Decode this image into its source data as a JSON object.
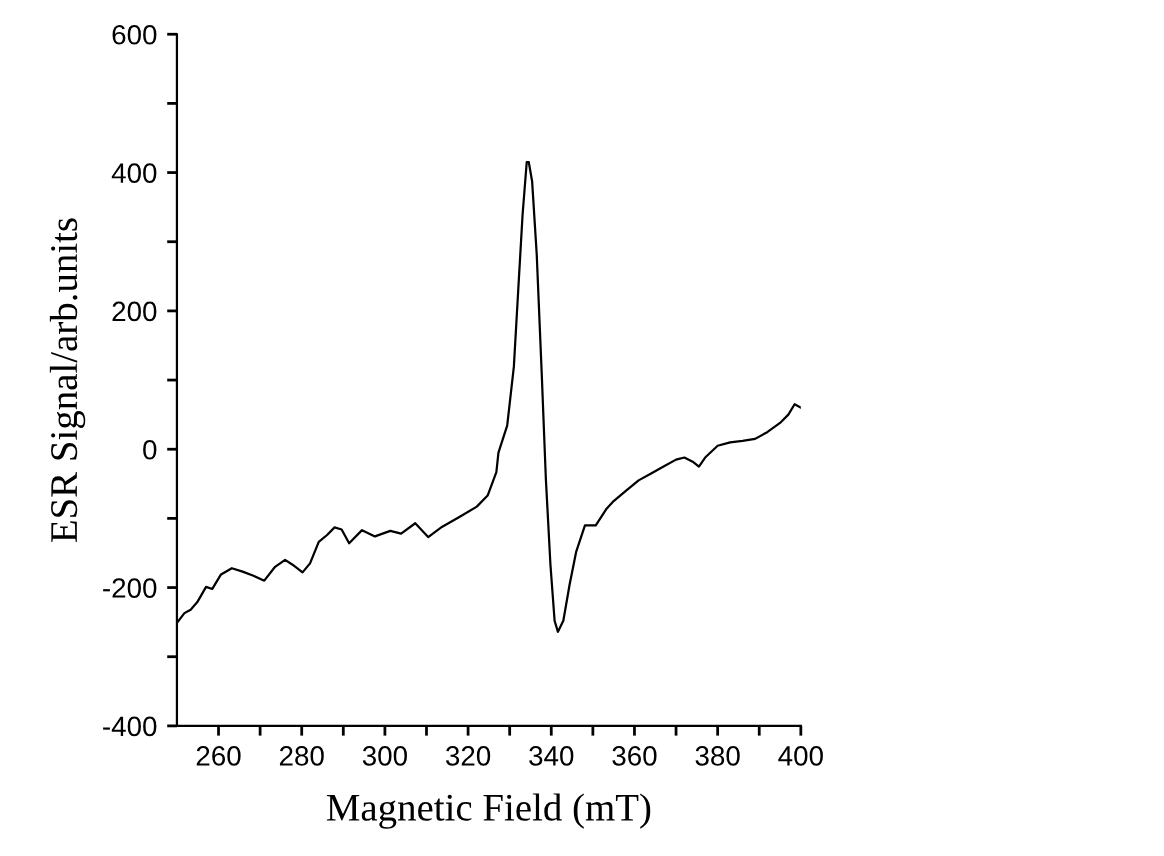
{
  "chart_data": {
    "type": "line",
    "xlabel": "Magnetic Field (mT)",
    "ylabel": "ESR Signal/arb.units",
    "xlim": [
      250,
      400
    ],
    "ylim": [
      -400,
      600
    ],
    "xticks": [
      260,
      {
        "value": 270,
        "label": null
      },
      280,
      {
        "value": 290,
        "label": null
      },
      300,
      {
        "value": 310,
        "label": null
      },
      320,
      {
        "value": 330,
        "label": null
      },
      340,
      {
        "value": 350,
        "label": null
      },
      360,
      {
        "value": 370,
        "label": null
      },
      380,
      {
        "value": 390,
        "label": null
      },
      400
    ],
    "yticks": [
      -400,
      {
        "value": -300,
        "label": null
      },
      -200,
      {
        "value": -100,
        "label": null
      },
      0,
      {
        "value": 100,
        "label": null
      },
      200,
      {
        "value": 300,
        "label": null
      },
      400,
      {
        "value": 500,
        "label": null
      },
      600
    ],
    "grid": false,
    "legend": false,
    "marker": "none",
    "line_style": "solid",
    "series": [
      {
        "color": "#000000",
        "x": [
          250,
          251.8,
          253.3,
          254.9,
          257,
          258.5,
          260.6,
          263.2,
          265.8,
          268.4,
          271,
          273.6,
          276,
          277.8,
          280.2,
          282,
          284.1,
          286.1,
          287.9,
          289.6,
          291.4,
          294.5,
          297.6,
          301.3,
          303.9,
          307.3,
          310.4,
          313.8,
          317.9,
          322.1,
          324.7,
          326.8,
          327.3,
          329.4,
          331,
          332,
          333.1,
          334.1,
          334.6,
          335.4,
          336.5,
          337.7,
          338.7,
          339.8,
          340.8,
          341.6,
          342.9,
          344.4,
          346,
          348.1,
          350.7,
          353.3,
          355,
          358,
          361,
          364,
          367,
          370,
          372,
          374,
          375.5,
          377,
          380,
          383,
          386,
          389,
          392,
          395,
          397,
          398.5,
          400
        ],
        "values": [
          -251,
          -237,
          -232,
          -221,
          -199,
          -202,
          -181,
          -172,
          -177,
          -183,
          -190,
          -170,
          -160,
          -167,
          -178,
          -165,
          -134,
          -124,
          -113,
          -116,
          -136,
          -117,
          -126,
          -118,
          -122,
          -107,
          -127,
          -112,
          -98,
          -83,
          -67,
          -33,
          -5,
          34,
          119,
          224,
          339,
          415,
          415,
          387,
          282,
          110,
          -43,
          -167,
          -248,
          -264,
          -248,
          -196,
          -148,
          -110,
          -110,
          -86,
          -75,
          -60,
          -45,
          -35,
          -25,
          -15,
          -12,
          -18,
          -25,
          -12,
          5,
          10,
          12,
          15,
          25,
          38,
          50,
          65,
          60
        ]
      }
    ]
  }
}
